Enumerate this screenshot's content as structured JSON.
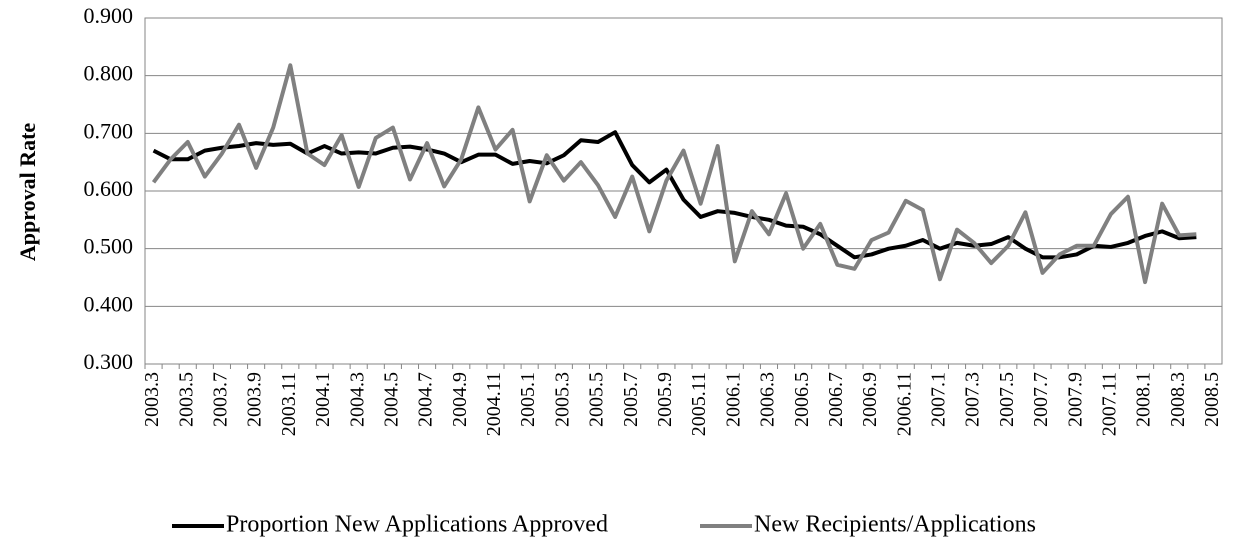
{
  "chart_data": {
    "type": "line",
    "y_label": "Approval Rate",
    "categories": [
      "2003.3",
      null,
      "2003.5",
      null,
      "2003.7",
      null,
      "2003.9",
      null,
      "2003.11",
      null,
      "2004.1",
      null,
      "2004.3",
      null,
      "2004.5",
      null,
      "2004.7",
      null,
      "2004.9",
      null,
      "2004.11",
      null,
      "2005.1",
      null,
      "2005.3",
      null,
      "2005.5",
      null,
      "2005.7",
      null,
      "2005.9",
      null,
      "2005.11",
      null,
      "2006.1",
      null,
      "2006.3",
      null,
      "2006.5",
      null,
      "2006.7",
      null,
      "2006.9",
      null,
      "2006.11",
      null,
      "2007.1",
      null,
      "2007.3",
      null,
      "2007.5",
      null,
      "2007.7",
      null,
      "2007.9",
      null,
      "2007.11",
      null,
      "2008.1",
      null,
      "2008.3",
      null,
      "2008.5"
    ],
    "series": [
      {
        "name": "Proportion New Applications Approved",
        "color": "#000000",
        "values": [
          0.67,
          0.655,
          0.655,
          0.67,
          0.675,
          0.678,
          0.683,
          0.68,
          0.682,
          0.665,
          0.678,
          0.665,
          0.667,
          0.665,
          0.675,
          0.677,
          0.672,
          0.665,
          0.65,
          0.663,
          0.663,
          0.647,
          0.652,
          0.648,
          0.662,
          0.688,
          0.685,
          0.702,
          0.645,
          0.615,
          0.637,
          0.585,
          0.555,
          0.565,
          0.562,
          0.555,
          0.55,
          0.54,
          0.538,
          0.525,
          0.505,
          0.485,
          0.49,
          0.5,
          0.505,
          0.515,
          0.5,
          0.51,
          0.505,
          0.508,
          0.52,
          0.5,
          0.485,
          0.485,
          0.49,
          0.505,
          0.503,
          0.51,
          0.522,
          0.53,
          0.518,
          0.52,
          null
        ]
      },
      {
        "name": "New Recipients/Applications",
        "color": "#808080",
        "values": [
          0.615,
          0.655,
          0.685,
          0.625,
          0.665,
          0.715,
          0.64,
          0.71,
          0.818,
          0.665,
          0.645,
          0.697,
          0.607,
          0.692,
          0.71,
          0.62,
          0.683,
          0.608,
          0.655,
          0.745,
          0.672,
          0.706,
          0.582,
          0.662,
          0.618,
          0.65,
          0.61,
          0.555,
          0.625,
          0.53,
          0.618,
          0.67,
          0.578,
          0.678,
          0.478,
          0.565,
          0.525,
          0.596,
          0.5,
          0.543,
          0.472,
          0.465,
          0.515,
          0.528,
          0.583,
          0.567,
          0.447,
          0.533,
          0.51,
          0.475,
          0.505,
          0.563,
          0.458,
          0.49,
          0.505,
          0.505,
          0.56,
          0.59,
          0.442,
          0.578,
          0.523,
          0.525,
          null
        ]
      }
    ],
    "ylim": [
      0.3,
      0.9
    ],
    "yticks": [
      {
        "value": 0.3,
        "label": "0.300"
      },
      {
        "value": 0.4,
        "label": "0.400"
      },
      {
        "value": 0.5,
        "label": "0.500"
      },
      {
        "value": 0.6,
        "label": "0.600"
      },
      {
        "value": 0.7,
        "label": "0.700"
      },
      {
        "value": 0.8,
        "label": "0.800"
      },
      {
        "value": 0.9,
        "label": "0.900"
      }
    ],
    "grid": true,
    "legend": "bottom"
  }
}
